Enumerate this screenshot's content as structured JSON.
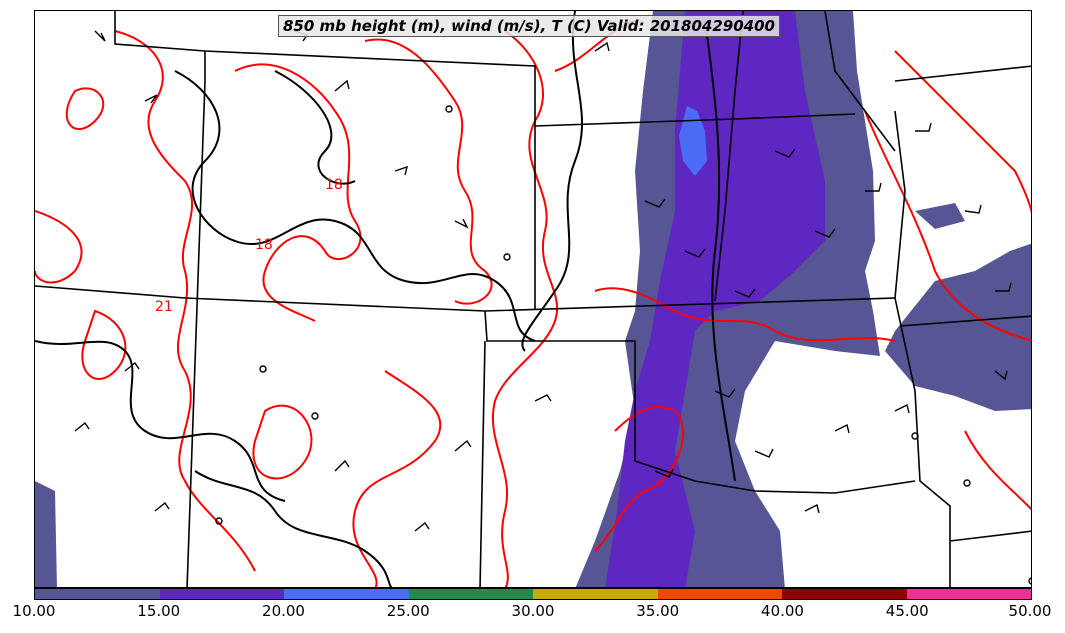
{
  "title": "850 mb height (m), wind (m/s), T (C) Valid: 201804290400",
  "colorbar": {
    "colors": [
      "#565694",
      "#5e27c2",
      "#4a6cf7",
      "#228b4b",
      "#c9a800",
      "#f04800",
      "#8f0000",
      "#f0309a"
    ],
    "tick_labels": [
      "10.00",
      "15.00",
      "20.00",
      "25.00",
      "30.00",
      "35.00",
      "40.00",
      "45.00",
      "50.00"
    ]
  },
  "temperature_labels": [
    "18",
    "18",
    "21"
  ],
  "colors": {
    "temperature_contour": "#ff0000",
    "height_contour": "#000000",
    "boundaries": "#000000"
  }
}
